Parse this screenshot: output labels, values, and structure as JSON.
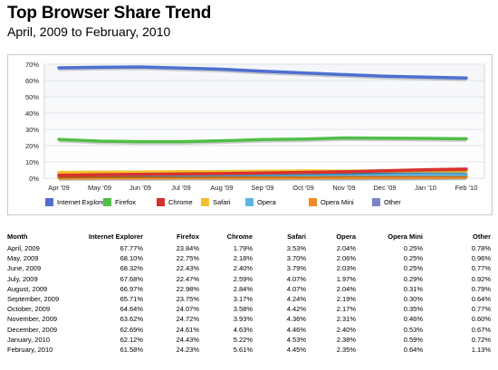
{
  "header": {
    "title": "Top Browser Share Trend",
    "subtitle": "April, 2009 to February, 2010"
  },
  "chart_data": {
    "type": "line",
    "title": "Top Browser Share Trend",
    "subtitle": "April, 2009 to February, 2010",
    "x": [
      "Apr '09",
      "May '09",
      "Jun '09",
      "Jul '09",
      "Aug '09",
      "Sep '09",
      "Oct '09",
      "Nov '09",
      "Dec '09",
      "Jan '10",
      "Feb '10"
    ],
    "y_ticks": [
      "0%",
      "10%",
      "20%",
      "30%",
      "40%",
      "50%",
      "60%",
      "70%"
    ],
    "ylim": [
      0,
      70
    ],
    "grid": true,
    "legend_position": "bottom",
    "series": [
      {
        "name": "Internet Explorer",
        "color": "#4f6fd0",
        "values": [
          67.77,
          68.1,
          68.32,
          67.68,
          66.97,
          65.71,
          64.64,
          63.62,
          62.69,
          62.12,
          61.58
        ]
      },
      {
        "name": "Firefox",
        "color": "#4fbf45",
        "values": [
          23.84,
          22.75,
          22.43,
          22.47,
          22.98,
          23.75,
          24.07,
          24.72,
          24.61,
          24.43,
          24.23
        ]
      },
      {
        "name": "Chrome",
        "color": "#d8322d",
        "values": [
          1.79,
          2.18,
          2.4,
          2.59,
          2.84,
          3.17,
          3.58,
          3.93,
          4.63,
          5.22,
          5.61
        ]
      },
      {
        "name": "Safari",
        "color": "#f2c12e",
        "values": [
          3.53,
          3.7,
          3.79,
          4.07,
          4.07,
          4.24,
          4.42,
          4.36,
          4.46,
          4.53,
          4.45
        ]
      },
      {
        "name": "Opera",
        "color": "#5ab6e6",
        "values": [
          2.04,
          2.06,
          2.03,
          1.97,
          2.04,
          2.19,
          2.17,
          2.31,
          2.4,
          2.38,
          2.35
        ]
      },
      {
        "name": "Opera Mini",
        "color": "#f08a24",
        "values": [
          0.25,
          0.25,
          0.25,
          0.29,
          0.31,
          0.3,
          0.35,
          0.46,
          0.53,
          0.59,
          0.64
        ]
      },
      {
        "name": "Other",
        "color": "#7b83c9",
        "values": [
          0.78,
          0.96,
          0.77,
          0.92,
          0.79,
          0.64,
          0.77,
          0.6,
          0.67,
          0.72,
          1.13
        ]
      }
    ]
  },
  "table": {
    "headers": [
      "Month",
      "Internet Explorer",
      "Firefox",
      "Chrome",
      "Safari",
      "Opera",
      "Opera Mini",
      "Other"
    ],
    "rows": [
      [
        "April, 2009",
        "67.77%",
        "23.84%",
        "1.79%",
        "3.53%",
        "2.04%",
        "0.25%",
        "0.78%"
      ],
      [
        "May, 2009",
        "68.10%",
        "22.75%",
        "2.18%",
        "3.70%",
        "2.06%",
        "0.25%",
        "0.96%"
      ],
      [
        "June, 2009",
        "68.32%",
        "22.43%",
        "2.40%",
        "3.79%",
        "2.03%",
        "0.25%",
        "0.77%"
      ],
      [
        "July, 2009",
        "67.68%",
        "22.47%",
        "2.59%",
        "4.07%",
        "1.97%",
        "0.29%",
        "0.92%"
      ],
      [
        "August, 2009",
        "66.97%",
        "22.98%",
        "2.84%",
        "4.07%",
        "2.04%",
        "0.31%",
        "0.79%"
      ],
      [
        "September, 2009",
        "65.71%",
        "23.75%",
        "3.17%",
        "4.24%",
        "2.19%",
        "0.30%",
        "0.64%"
      ],
      [
        "October, 2009",
        "64.64%",
        "24.07%",
        "3.58%",
        "4.42%",
        "2.17%",
        "0.35%",
        "0.77%"
      ],
      [
        "November, 2009",
        "63.62%",
        "24.72%",
        "3.93%",
        "4.36%",
        "2.31%",
        "0.46%",
        "0.60%"
      ],
      [
        "December, 2009",
        "62.69%",
        "24.61%",
        "4.63%",
        "4.46%",
        "2.40%",
        "0.53%",
        "0.67%"
      ],
      [
        "January, 2010",
        "62.12%",
        "24.43%",
        "5.22%",
        "4.53%",
        "2.38%",
        "0.59%",
        "0.72%"
      ],
      [
        "February, 2010",
        "61.58%",
        "24.23%",
        "5.61%",
        "4.45%",
        "2.35%",
        "0.64%",
        "1.13%"
      ]
    ]
  }
}
